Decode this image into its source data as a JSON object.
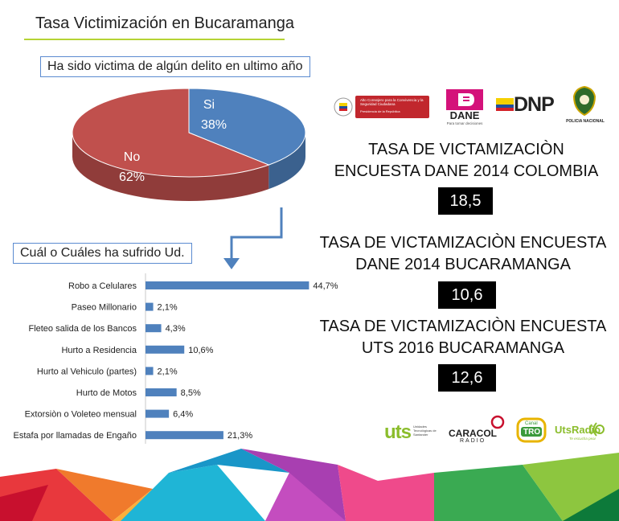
{
  "header": {
    "title": "Tasa Victimización en Bucaramanga"
  },
  "pie_question": "Ha sido victima de algún delito en ultimo año",
  "bar_question": "Cuál o Cuáles  ha sufrido Ud.",
  "chart_data": [
    {
      "type": "pie",
      "title": "Ha sido victima de algún delito en ultimo año",
      "slices": [
        {
          "label": "Si",
          "value": 38,
          "value_label": "38%",
          "color": "#4f81bd"
        },
        {
          "label": "No",
          "value": 62,
          "value_label": "62%",
          "color": "#c0504d"
        }
      ]
    },
    {
      "type": "bar",
      "orientation": "horizontal",
      "title": "Cuál o Cuáles  ha sufrido Ud.",
      "categories": [
        "Robo a Celulares",
        "Paseo Millonario",
        "Fleteo salida de los Bancos",
        "Hurto a Residencia",
        "Hurto al Vehiculo (partes)",
        "Hurto de Motos",
        "Extorsiòn o Voleteo mensual",
        "Estafa por llamadas de Engaño"
      ],
      "values": [
        44.7,
        2.1,
        4.3,
        10.6,
        2.1,
        8.5,
        6.4,
        21.3
      ],
      "value_labels": [
        "44,7%",
        "2,1%",
        "4,3%",
        "10,6%",
        "2,1%",
        "8,5%",
        "6,4%",
        "21,3%"
      ],
      "color": "#4f81bd"
    }
  ],
  "stats": [
    {
      "title_line1": "TASA DE VICTAMIZACIÒN",
      "title_line2": "ENCUESTA DANE 2014 COLOMBIA",
      "value": "18,5"
    },
    {
      "title_line1": "TASA DE VICTAMIZACIÒN ENCUESTA",
      "title_line2": "DANE 2014 BUCARAMANGA",
      "value": "10,6"
    },
    {
      "title_line1": "TASA DE VICTAMIZACIÒN ENCUESTA",
      "title_line2": "UTS 2016 BUCARAMANGA",
      "value": "12,6"
    }
  ],
  "logos_top": {
    "consejero": "Alto Consejero para la Convivencia y la Seguridad Ciudadana",
    "consejero_sub": "Presidencia de la República",
    "dane": "DANE",
    "dane_sub": "Para tomar decisiones",
    "dnp": "DNP",
    "policia": "POLICIA NACIONAL"
  },
  "logos_bottom": {
    "uts": "uts",
    "uts_sub": "Unidades Tecnológicas de Santander",
    "caracol": "CARACOL",
    "caracol_sub": "RADIO",
    "tro_top": "Canal",
    "tro": "TRO",
    "utsradio": "UtsRadio",
    "utsradio_sub": "Te escucha pear"
  },
  "colors": {
    "accent_line": "#b5d334",
    "bar": "#4f81bd",
    "si": "#4f81bd",
    "no": "#c0504d"
  }
}
